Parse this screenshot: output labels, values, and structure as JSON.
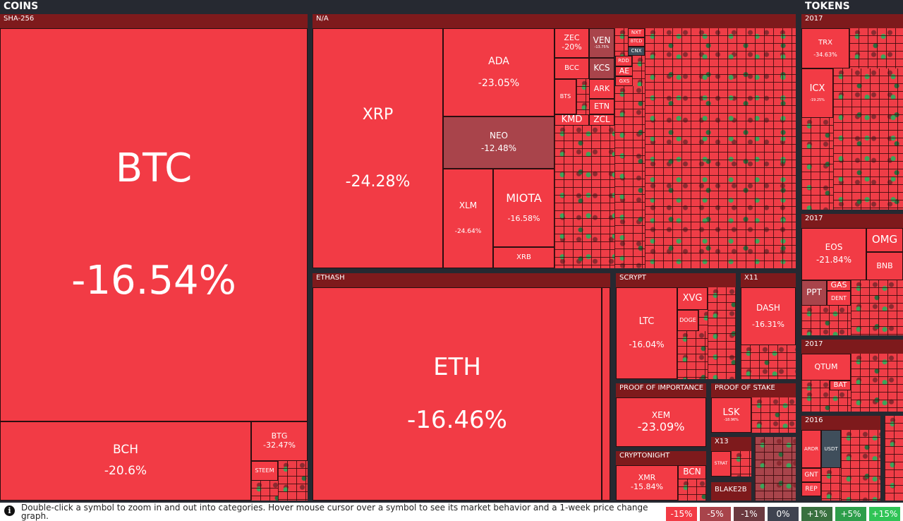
{
  "sections": {
    "coins": "COINS",
    "tokens": "TOKENS"
  },
  "categories": {
    "sha256": "SHA-256",
    "na": "N/A",
    "ethash": "ETHASH",
    "scrypt": "SCRYPT",
    "x11": "X11",
    "proof_of_importance": "PROOF OF IMPORTANCE",
    "proof_of_stake": "PROOF OF STAKE",
    "cryptonight": "CRYPTONIGHT",
    "x13": "X13",
    "blake2b": "BLAKE2B",
    "tokens_2017a": "2017",
    "tokens_2017b": "2017",
    "tokens_2017c": "2017",
    "tokens_2016": "2016"
  },
  "coins": {
    "btc": {
      "symbol": "BTC",
      "change": "-16.54%"
    },
    "bch": {
      "symbol": "BCH",
      "change": "-20.6%"
    },
    "btg": {
      "symbol": "BTG",
      "change": "-32.47%"
    },
    "steem": {
      "symbol": "STEEM"
    },
    "xrp": {
      "symbol": "XRP",
      "change": "-24.28%"
    },
    "ada": {
      "symbol": "ADA",
      "change": "-23.05%"
    },
    "neo": {
      "symbol": "NEO",
      "change": "-12.48%"
    },
    "xlm": {
      "symbol": "XLM",
      "change": "-24.64%"
    },
    "miota": {
      "symbol": "MIOTA",
      "change": "-16.58%"
    },
    "xrb": {
      "symbol": "XRB"
    },
    "zec": {
      "symbol": "ZEC",
      "change": "-20%"
    },
    "ven": {
      "symbol": "VEN",
      "change": "-13.75%"
    },
    "nxt": {
      "symbol": "NXT"
    },
    "btcd": {
      "symbol": "BTCD"
    },
    "cnx": {
      "symbol": "CNX"
    },
    "rdd": {
      "symbol": "RDD"
    },
    "bcc": {
      "symbol": "BCC"
    },
    "kcs": {
      "symbol": "KCS"
    },
    "ae": {
      "symbol": "AE"
    },
    "gxs": {
      "symbol": "GXS"
    },
    "bts": {
      "symbol": "BTS"
    },
    "ark": {
      "symbol": "ARK"
    },
    "etn": {
      "symbol": "ETN"
    },
    "kmd": {
      "symbol": "KMD"
    },
    "zcl": {
      "symbol": "ZCL"
    },
    "eth": {
      "symbol": "ETH",
      "change": "-16.46%"
    },
    "ltc": {
      "symbol": "LTC",
      "change": "-16.04%"
    },
    "xvg": {
      "symbol": "XVG"
    },
    "doge": {
      "symbol": "DOGE"
    },
    "dash": {
      "symbol": "DASH",
      "change": "-16.31%"
    },
    "xem": {
      "symbol": "XEM",
      "change": "-23.09%"
    },
    "lsk": {
      "symbol": "LSK",
      "change": "-18.96%"
    },
    "strat": {
      "symbol": "STRAT"
    },
    "xmr": {
      "symbol": "XMR",
      "change": "-15.84%"
    },
    "bcn": {
      "symbol": "BCN"
    }
  },
  "tokens": {
    "trx": {
      "symbol": "TRX",
      "change": "-34.63%"
    },
    "icx": {
      "symbol": "ICX",
      "change": "-19.25%"
    },
    "eos": {
      "symbol": "EOS",
      "change": "-21.84%"
    },
    "omg": {
      "symbol": "OMG"
    },
    "bnb": {
      "symbol": "BNB"
    },
    "ppt": {
      "symbol": "PPT"
    },
    "gas": {
      "symbol": "GAS"
    },
    "dent": {
      "symbol": "DENT"
    },
    "qtum": {
      "symbol": "QTUM"
    },
    "bat": {
      "symbol": "BAT"
    },
    "ardr": {
      "symbol": "ARDR"
    },
    "usdt": {
      "symbol": "USDT"
    },
    "gnt": {
      "symbol": "GNT"
    },
    "rep": {
      "symbol": "REP"
    }
  },
  "footer": {
    "help_text": "Double-click a symbol to zoom in and out into categories. Hover mouse cursor over a symbol to see its market behavior and a 1-week price change graph."
  },
  "legend": [
    {
      "label": "-15%",
      "color": "#f23b45"
    },
    {
      "label": "-5%",
      "color": "#a8444b"
    },
    {
      "label": "-1%",
      "color": "#6b3a40"
    },
    {
      "label": "0%",
      "color": "#3f4350"
    },
    {
      "label": "+1%",
      "color": "#39703f"
    },
    {
      "label": "+5%",
      "color": "#2e9e4b"
    },
    {
      "label": "+15%",
      "color": "#30c456"
    }
  ]
}
